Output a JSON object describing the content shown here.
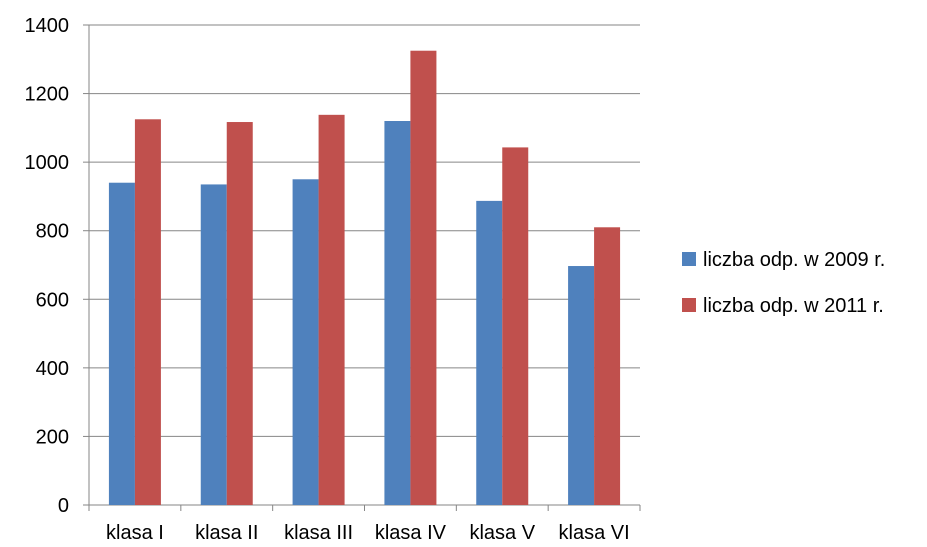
{
  "chart_data": {
    "type": "bar",
    "title": "",
    "xlabel": "",
    "ylabel": "",
    "categories": [
      "klasa I",
      "klasa II",
      "klasa III",
      "klasa IV",
      "klasa V",
      "klasa VI"
    ],
    "series": [
      {
        "name": "liczba odp. w 2009 r.",
        "color": "#4F81BD",
        "values": [
          940,
          935,
          950,
          1120,
          887,
          697
        ]
      },
      {
        "name": "liczba odp. w 2011 r.",
        "color": "#C0504D",
        "values": [
          1125,
          1117,
          1138,
          1325,
          1043,
          810
        ]
      }
    ],
    "ylim": [
      0,
      1400
    ],
    "yticks": [
      0,
      200,
      400,
      600,
      800,
      1000,
      1200,
      1400
    ],
    "grid": true,
    "legend_position": "right"
  }
}
